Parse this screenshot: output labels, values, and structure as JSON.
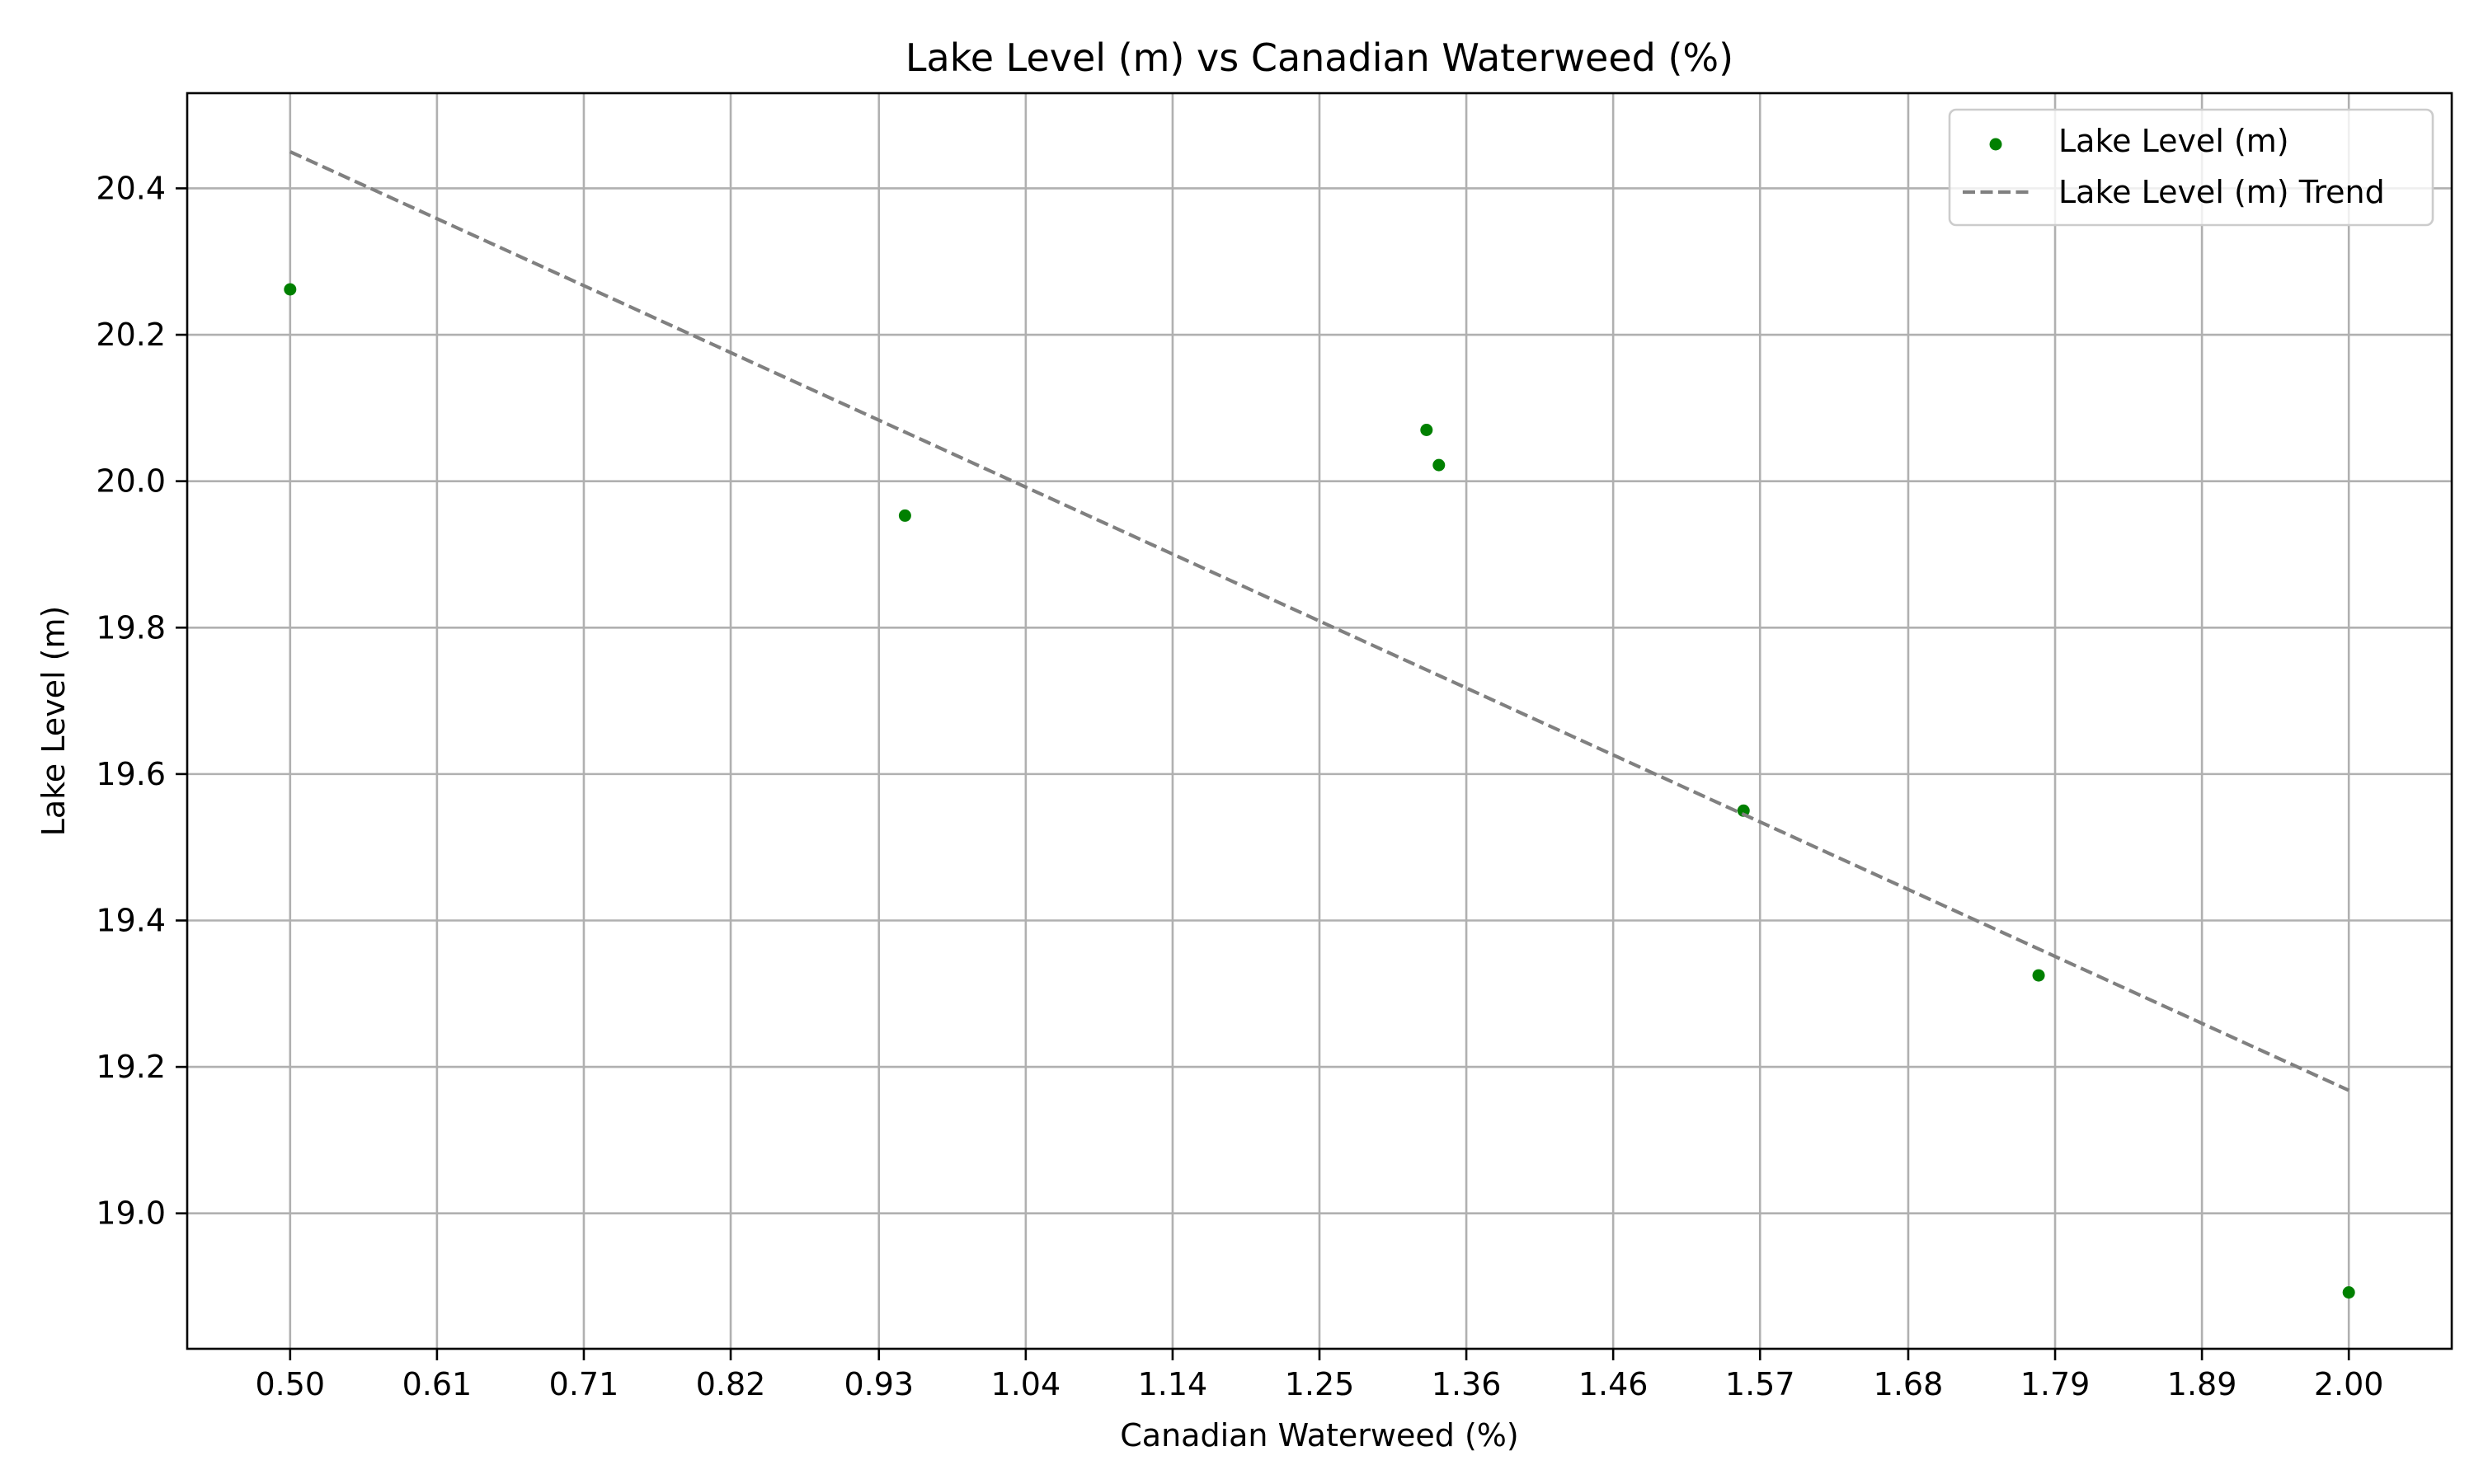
{
  "chart_data": {
    "type": "scatter",
    "title": "Lake Level (m) vs Canadian Waterweed (%)",
    "xlabel": "Canadian Waterweed (%)",
    "ylabel": "Lake Level (m)",
    "xlim": [
      0.425,
      2.075
    ],
    "ylim": [
      18.815,
      20.53
    ],
    "x_ticks": [
      0.5,
      0.607,
      0.714,
      0.821,
      0.929,
      1.036,
      1.143,
      1.25,
      1.357,
      1.464,
      1.571,
      1.679,
      1.786,
      1.893,
      2.0
    ],
    "x_tick_labels": [
      "0.50",
      "0.61",
      "0.71",
      "0.82",
      "0.93",
      "1.04",
      "1.14",
      "1.25",
      "1.36",
      "1.46",
      "1.57",
      "1.68",
      "1.79",
      "1.89",
      "2.00"
    ],
    "y_ticks": [
      19.0,
      19.2,
      19.4,
      19.6,
      19.8,
      20.0,
      20.2,
      20.4
    ],
    "y_tick_labels": [
      "19.0",
      "19.2",
      "19.4",
      "19.6",
      "19.8",
      "20.0",
      "20.2",
      "20.4"
    ],
    "grid": true,
    "legend_position": "top-right",
    "series": [
      {
        "name": "Lake Level (m)",
        "kind": "scatter",
        "color": "#008000",
        "points": [
          {
            "x": 0.5,
            "y": 20.262
          },
          {
            "x": 0.948,
            "y": 19.953
          },
          {
            "x": 1.328,
            "y": 20.07
          },
          {
            "x": 1.337,
            "y": 20.022
          },
          {
            "x": 1.559,
            "y": 19.55
          },
          {
            "x": 1.774,
            "y": 19.325
          },
          {
            "x": 2.0,
            "y": 18.892
          }
        ]
      },
      {
        "name": "Lake Level (m) Trend",
        "kind": "line",
        "style": "dashed",
        "color": "#808080",
        "points": [
          {
            "x": 0.5,
            "y": 20.45
          },
          {
            "x": 2.0,
            "y": 19.168
          }
        ]
      }
    ]
  }
}
